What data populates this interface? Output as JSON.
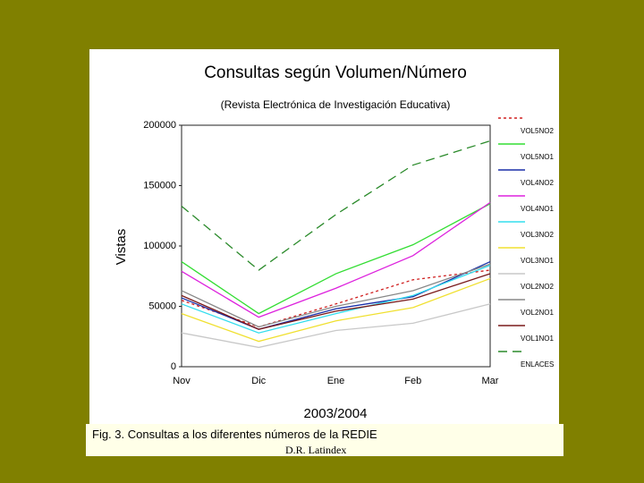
{
  "chart_data": {
    "type": "line",
    "title": "Consultas según Volumen/Número",
    "subtitle": "(Revista Electrónica de Investigación Educativa)",
    "x_label": "2003/2004",
    "y_label": "Vistas",
    "categories": [
      "Nov",
      "Dic",
      "Ene",
      "Feb",
      "Mar"
    ],
    "ylim": [
      0,
      200000
    ],
    "yticks": [
      0,
      50000,
      100000,
      150000,
      200000
    ],
    "series": [
      {
        "name": "VOL5NO2",
        "color": "#d02020",
        "dash": "3,3",
        "values": [
          55000,
          33000,
          52000,
          72000,
          80000
        ]
      },
      {
        "name": "VOL5NO1",
        "color": "#33dd33",
        "values": [
          87000,
          44000,
          77000,
          101000,
          135000
        ]
      },
      {
        "name": "VOL4NO2",
        "color": "#1a2fa8",
        "values": [
          57000,
          31000,
          48000,
          58000,
          87000
        ]
      },
      {
        "name": "VOL4NO1",
        "color": "#dd22dd",
        "values": [
          79000,
          41000,
          65000,
          92000,
          136000
        ]
      },
      {
        "name": "VOL3NO2",
        "color": "#33ddee",
        "values": [
          52000,
          28000,
          44000,
          59000,
          84000
        ]
      },
      {
        "name": "VOL3NO1",
        "color": "#f0e030",
        "values": [
          44000,
          21000,
          38000,
          49000,
          73000
        ]
      },
      {
        "name": "VOL2NO2",
        "color": "#c8c8c8",
        "values": [
          28000,
          16000,
          30000,
          36000,
          52000
        ]
      },
      {
        "name": "VOL2NO1",
        "color": "#888888",
        "values": [
          63000,
          33000,
          50000,
          63000,
          85000
        ]
      },
      {
        "name": "VOL1NO1",
        "color": "#7a1a1a",
        "values": [
          59000,
          31000,
          46000,
          56000,
          77000
        ]
      },
      {
        "name": "ENLACES",
        "color": "#2a8a2a",
        "dash": "10,6",
        "values": [
          133000,
          80000,
          126000,
          167000,
          187000
        ]
      }
    ]
  },
  "caption": {
    "text": "Fig. 3.  Consultas a los diferentes números de la REDIE",
    "credit": "D.R. Latindex"
  }
}
